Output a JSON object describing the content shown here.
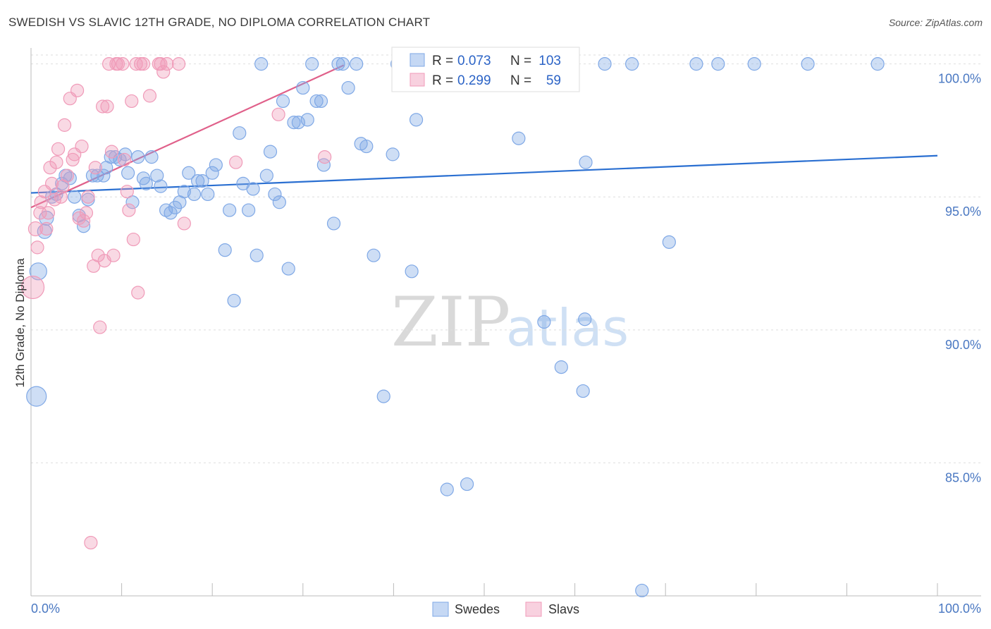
{
  "chart_data": {
    "type": "scatter",
    "title": "SWEDISH VS SLAVIC 12TH GRADE, NO DIPLOMA CORRELATION CHART",
    "source": "Source: ZipAtlas.com",
    "xlabel": "",
    "ylabel": "12th Grade, No Diploma",
    "xlim": [
      0,
      100
    ],
    "ylim": [
      80,
      100.6
    ],
    "x_tick_labels": [
      "0.0%",
      "100.0%"
    ],
    "y_ticks": [
      85,
      90,
      95,
      100
    ],
    "y_tick_labels": [
      "85.0%",
      "90.0%",
      "95.0%",
      "100.0%"
    ],
    "watermark": [
      "ZIP",
      "atlas"
    ],
    "legend": {
      "r_label": "R =",
      "n_label": "N =",
      "entries": [
        {
          "name": "Swedes",
          "r": "0.073",
          "n": "103",
          "color": "#7fa8e6"
        },
        {
          "name": "Slavs",
          "r": "0.299",
          "n": "59",
          "color": "#f09ab8"
        }
      ]
    },
    "series": [
      {
        "name": "Swedes",
        "color": "#7fa8e6",
        "line_color": "#2a6fd1",
        "trend": [
          [
            0,
            95.15
          ],
          [
            100,
            96.55
          ]
        ],
        "points": [
          [
            0.6,
            87.5,
            14
          ],
          [
            0.8,
            92.2,
            12
          ],
          [
            1.5,
            93.7,
            10
          ],
          [
            1.7,
            94.2,
            10
          ],
          [
            2.3,
            95.0,
            9
          ],
          [
            2.8,
            95.1,
            9
          ],
          [
            3.4,
            95.5,
            9
          ],
          [
            3.8,
            95.8,
            9
          ],
          [
            4.3,
            95.7,
            9
          ],
          [
            4.8,
            95.0,
            9
          ],
          [
            5.3,
            94.3,
            9
          ],
          [
            5.8,
            93.9,
            9
          ],
          [
            6.3,
            94.9,
            9
          ],
          [
            6.8,
            95.8,
            9
          ],
          [
            7.3,
            95.8,
            9
          ],
          [
            8.0,
            95.8,
            9
          ],
          [
            8.3,
            96.1,
            9
          ],
          [
            8.8,
            96.5,
            9
          ],
          [
            9.3,
            96.5,
            9
          ],
          [
            9.8,
            96.4,
            9
          ],
          [
            10.4,
            96.6,
            9
          ],
          [
            10.7,
            95.9,
            9
          ],
          [
            11.2,
            94.8,
            9
          ],
          [
            11.8,
            96.5,
            9
          ],
          [
            12.4,
            95.7,
            9
          ],
          [
            12.7,
            95.5,
            9
          ],
          [
            13.3,
            96.5,
            9
          ],
          [
            13.9,
            95.8,
            9
          ],
          [
            14.3,
            95.4,
            9
          ],
          [
            14.9,
            94.5,
            9
          ],
          [
            15.4,
            94.4,
            9
          ],
          [
            15.9,
            94.6,
            9
          ],
          [
            16.4,
            94.8,
            9
          ],
          [
            16.9,
            95.2,
            9
          ],
          [
            17.4,
            95.9,
            9
          ],
          [
            18.0,
            95.1,
            9
          ],
          [
            18.4,
            95.6,
            9
          ],
          [
            18.9,
            95.6,
            9
          ],
          [
            19.5,
            95.1,
            9
          ],
          [
            20.0,
            95.9,
            9
          ],
          [
            20.4,
            96.2,
            9
          ],
          [
            21.4,
            93.0,
            9
          ],
          [
            21.9,
            94.5,
            9
          ],
          [
            22.4,
            91.1,
            9
          ],
          [
            23.0,
            97.4,
            9
          ],
          [
            23.4,
            95.5,
            9
          ],
          [
            24.0,
            94.5,
            9
          ],
          [
            24.5,
            95.3,
            9
          ],
          [
            24.9,
            92.8,
            9
          ],
          [
            25.4,
            100.0,
            9
          ],
          [
            26.0,
            95.8,
            9
          ],
          [
            26.4,
            96.7,
            9
          ],
          [
            26.9,
            95.1,
            9
          ],
          [
            27.4,
            94.8,
            9
          ],
          [
            27.8,
            98.6,
            9
          ],
          [
            28.4,
            92.3,
            9
          ],
          [
            29.0,
            97.8,
            9
          ],
          [
            29.5,
            97.8,
            9
          ],
          [
            30.0,
            99.1,
            9
          ],
          [
            30.5,
            97.9,
            9
          ],
          [
            31.0,
            100.0,
            9
          ],
          [
            31.5,
            98.6,
            9
          ],
          [
            32.0,
            98.6,
            9
          ],
          [
            32.3,
            96.2,
            9
          ],
          [
            33.4,
            94.0,
            9
          ],
          [
            33.9,
            100.0,
            9
          ],
          [
            34.4,
            100.0,
            9
          ],
          [
            35.0,
            99.1,
            9
          ],
          [
            35.9,
            100.0,
            9
          ],
          [
            36.4,
            97.0,
            9
          ],
          [
            37.0,
            96.9,
            9
          ],
          [
            37.8,
            92.8,
            9
          ],
          [
            38.9,
            87.5,
            9
          ],
          [
            39.9,
            96.6,
            9
          ],
          [
            40.4,
            100.0,
            9
          ],
          [
            41.0,
            100.0,
            9
          ],
          [
            42.0,
            92.2,
            9
          ],
          [
            42.5,
            97.9,
            9
          ],
          [
            43.0,
            100.0,
            9
          ],
          [
            43.9,
            100.0,
            9
          ],
          [
            45.4,
            100.0,
            9
          ],
          [
            45.9,
            84.0,
            9
          ],
          [
            48.1,
            84.2,
            9
          ],
          [
            49.0,
            100.0,
            9
          ],
          [
            50.3,
            100.0,
            9
          ],
          [
            52.0,
            100.0,
            9
          ],
          [
            53.8,
            97.2,
            9
          ],
          [
            54.9,
            100.0,
            9
          ],
          [
            56.6,
            90.3,
            9
          ],
          [
            58.5,
            88.6,
            9
          ],
          [
            59.4,
            100.0,
            9
          ],
          [
            60.9,
            87.7,
            9
          ],
          [
            61.1,
            90.4,
            9
          ],
          [
            61.2,
            96.3,
            9
          ],
          [
            63.3,
            100.0,
            9
          ],
          [
            66.3,
            100.0,
            9
          ],
          [
            67.4,
            80.2,
            9
          ],
          [
            70.4,
            93.3,
            9
          ],
          [
            73.4,
            100.0,
            9
          ],
          [
            75.8,
            100.0,
            9
          ],
          [
            79.8,
            100.0,
            9
          ],
          [
            85.7,
            100.0,
            9
          ],
          [
            93.4,
            100.0,
            9
          ]
        ]
      },
      {
        "name": "Slavs",
        "color": "#f09ab8",
        "line_color": "#e0608a",
        "trend": [
          [
            0,
            94.6
          ],
          [
            34.5,
            99.95
          ]
        ],
        "points": [
          [
            0.2,
            91.6,
            16
          ],
          [
            0.5,
            93.8,
            10
          ],
          [
            0.7,
            93.1,
            9
          ],
          [
            1.0,
            94.4,
            9
          ],
          [
            1.1,
            94.8,
            9
          ],
          [
            1.5,
            95.2,
            9
          ],
          [
            1.7,
            93.8,
            9
          ],
          [
            1.9,
            94.4,
            9
          ],
          [
            2.1,
            96.1,
            9
          ],
          [
            2.3,
            95.5,
            9
          ],
          [
            2.6,
            94.9,
            9
          ],
          [
            2.8,
            96.3,
            9
          ],
          [
            3.0,
            96.8,
            9
          ],
          [
            3.3,
            95.0,
            9
          ],
          [
            3.5,
            95.4,
            9
          ],
          [
            3.7,
            97.7,
            9
          ],
          [
            4.0,
            95.8,
            9
          ],
          [
            4.3,
            98.7,
            9
          ],
          [
            4.6,
            96.4,
            9
          ],
          [
            4.8,
            96.6,
            9
          ],
          [
            5.1,
            99.0,
            9
          ],
          [
            5.3,
            94.2,
            9
          ],
          [
            5.6,
            96.9,
            9
          ],
          [
            5.8,
            94.1,
            9
          ],
          [
            6.1,
            94.4,
            9
          ],
          [
            6.3,
            95.0,
            9
          ],
          [
            6.6,
            82.0,
            9
          ],
          [
            6.9,
            92.4,
            9
          ],
          [
            7.1,
            96.1,
            9
          ],
          [
            7.4,
            92.8,
            9
          ],
          [
            7.6,
            90.1,
            9
          ],
          [
            7.9,
            98.4,
            9
          ],
          [
            8.1,
            92.6,
            9
          ],
          [
            8.4,
            98.4,
            9
          ],
          [
            8.6,
            100.0,
            9
          ],
          [
            8.9,
            96.7,
            9
          ],
          [
            9.1,
            92.8,
            9
          ],
          [
            9.4,
            100.0,
            9
          ],
          [
            9.6,
            100.0,
            9
          ],
          [
            10.1,
            100.0,
            9
          ],
          [
            10.3,
            96.4,
            9
          ],
          [
            10.6,
            95.2,
            9
          ],
          [
            10.8,
            94.5,
            9
          ],
          [
            11.1,
            98.6,
            9
          ],
          [
            11.3,
            93.4,
            9
          ],
          [
            11.6,
            100.0,
            9
          ],
          [
            11.8,
            91.4,
            9
          ],
          [
            12.1,
            100.0,
            9
          ],
          [
            12.4,
            100.0,
            9
          ],
          [
            13.1,
            98.8,
            9
          ],
          [
            14.1,
            100.0,
            9
          ],
          [
            14.3,
            100.0,
            9
          ],
          [
            14.6,
            99.7,
            9
          ],
          [
            15.0,
            100.0,
            9
          ],
          [
            16.3,
            100.0,
            9
          ],
          [
            16.9,
            94.0,
            9
          ],
          [
            22.6,
            96.3,
            9
          ],
          [
            27.3,
            98.1,
            9
          ],
          [
            32.4,
            96.5,
            9
          ]
        ]
      }
    ]
  }
}
